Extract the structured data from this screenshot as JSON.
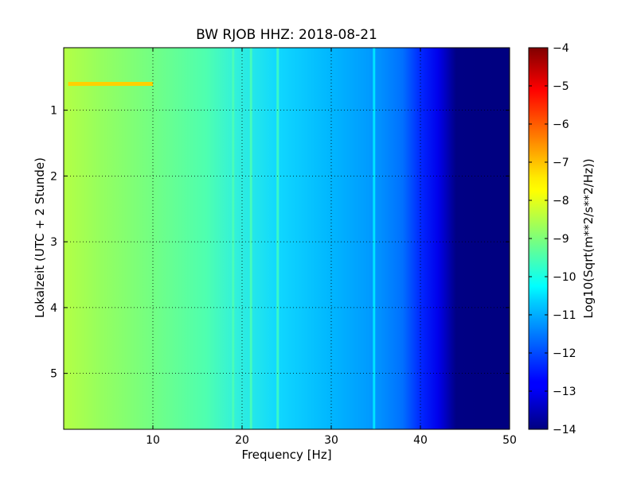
{
  "chart_data": {
    "type": "heatmap",
    "title": "BW RJOB HHZ: 2018-08-21",
    "xlabel": "Frequency [Hz]",
    "ylabel": "Lokalzeit (UTC + 2 Stunde)",
    "xlim": [
      0,
      50
    ],
    "ylim": [
      5.85,
      0.05
    ],
    "y_inverted": true,
    "x_ticks": [
      "10",
      "20",
      "30",
      "40",
      "50"
    ],
    "y_ticks": [
      "1",
      "2",
      "3",
      "4",
      "5"
    ],
    "grid": "dotted",
    "colorscale": "jet",
    "colorbar": {
      "label": "Log10(Sqrt(m**2/s**2/Hz))",
      "range": [
        -14,
        -4
      ],
      "ticks": [
        "-4",
        "-5",
        "-6",
        "-7",
        "-8",
        "-9",
        "-10",
        "-11",
        "-12",
        "-13",
        "-14"
      ]
    },
    "spectral_profile": [
      {
        "freq_hz": 0,
        "value": -8.8
      },
      {
        "freq_hz": 5,
        "value": -9.3
      },
      {
        "freq_hz": 10,
        "value": -9.6
      },
      {
        "freq_hz": 15,
        "value": -9.9
      },
      {
        "freq_hz": 19,
        "value": -10.1
      },
      {
        "freq_hz": 24,
        "value": -10.5
      },
      {
        "freq_hz": 30,
        "value": -10.9
      },
      {
        "freq_hz": 35,
        "value": -11.2
      },
      {
        "freq_hz": 38,
        "value": -11.6
      },
      {
        "freq_hz": 40,
        "value": -12.2
      },
      {
        "freq_hz": 42,
        "value": -13.6
      },
      {
        "freq_hz": 50,
        "value": -14.0
      }
    ],
    "narrowband_lines": [
      {
        "freq_hz": 19.0,
        "value": -9.5
      },
      {
        "freq_hz": 21.0,
        "value": -9.5
      },
      {
        "freq_hz": 24.0,
        "value": -9.6
      },
      {
        "freq_hz": 34.8,
        "value": -10.4
      }
    ],
    "transient_events": [
      {
        "time_h": 0.6,
        "freq_range_hz": [
          0.5,
          10
        ],
        "value": -7.3
      }
    ]
  }
}
